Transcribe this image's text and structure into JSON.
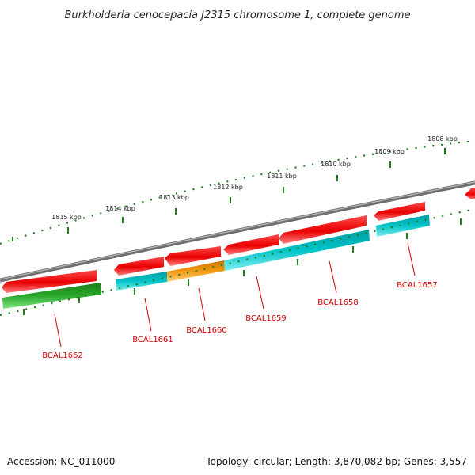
{
  "title": "Burkholderia cenocepacia J2315 chromosome 1, complete genome",
  "footer": {
    "accession": "Accession: NC_011000",
    "summary": "Topology: circular; Length: 3,870,082 bp; Genes: 3,557"
  },
  "colors": {
    "backbone": "#808080",
    "forward_gene": "#e80000",
    "cds_cyan": "#00c4c8",
    "cds_orange": "#f59a10",
    "cds_green": "#2aa82a",
    "tick": "#1a7f1a",
    "gene_label": "#d00000"
  },
  "scale_ticks": [
    "1815 kbp",
    "1814 kbp",
    "1813 kbp",
    "1812 kbp",
    "1811 kbp",
    "1810 kbp",
    "1809 kbp",
    "1808 kbp"
  ],
  "genes": [
    "BCAL1662",
    "BCAL1661",
    "BCAL1660",
    "BCAL1659",
    "BCAL1658",
    "BCAL1657"
  ]
}
